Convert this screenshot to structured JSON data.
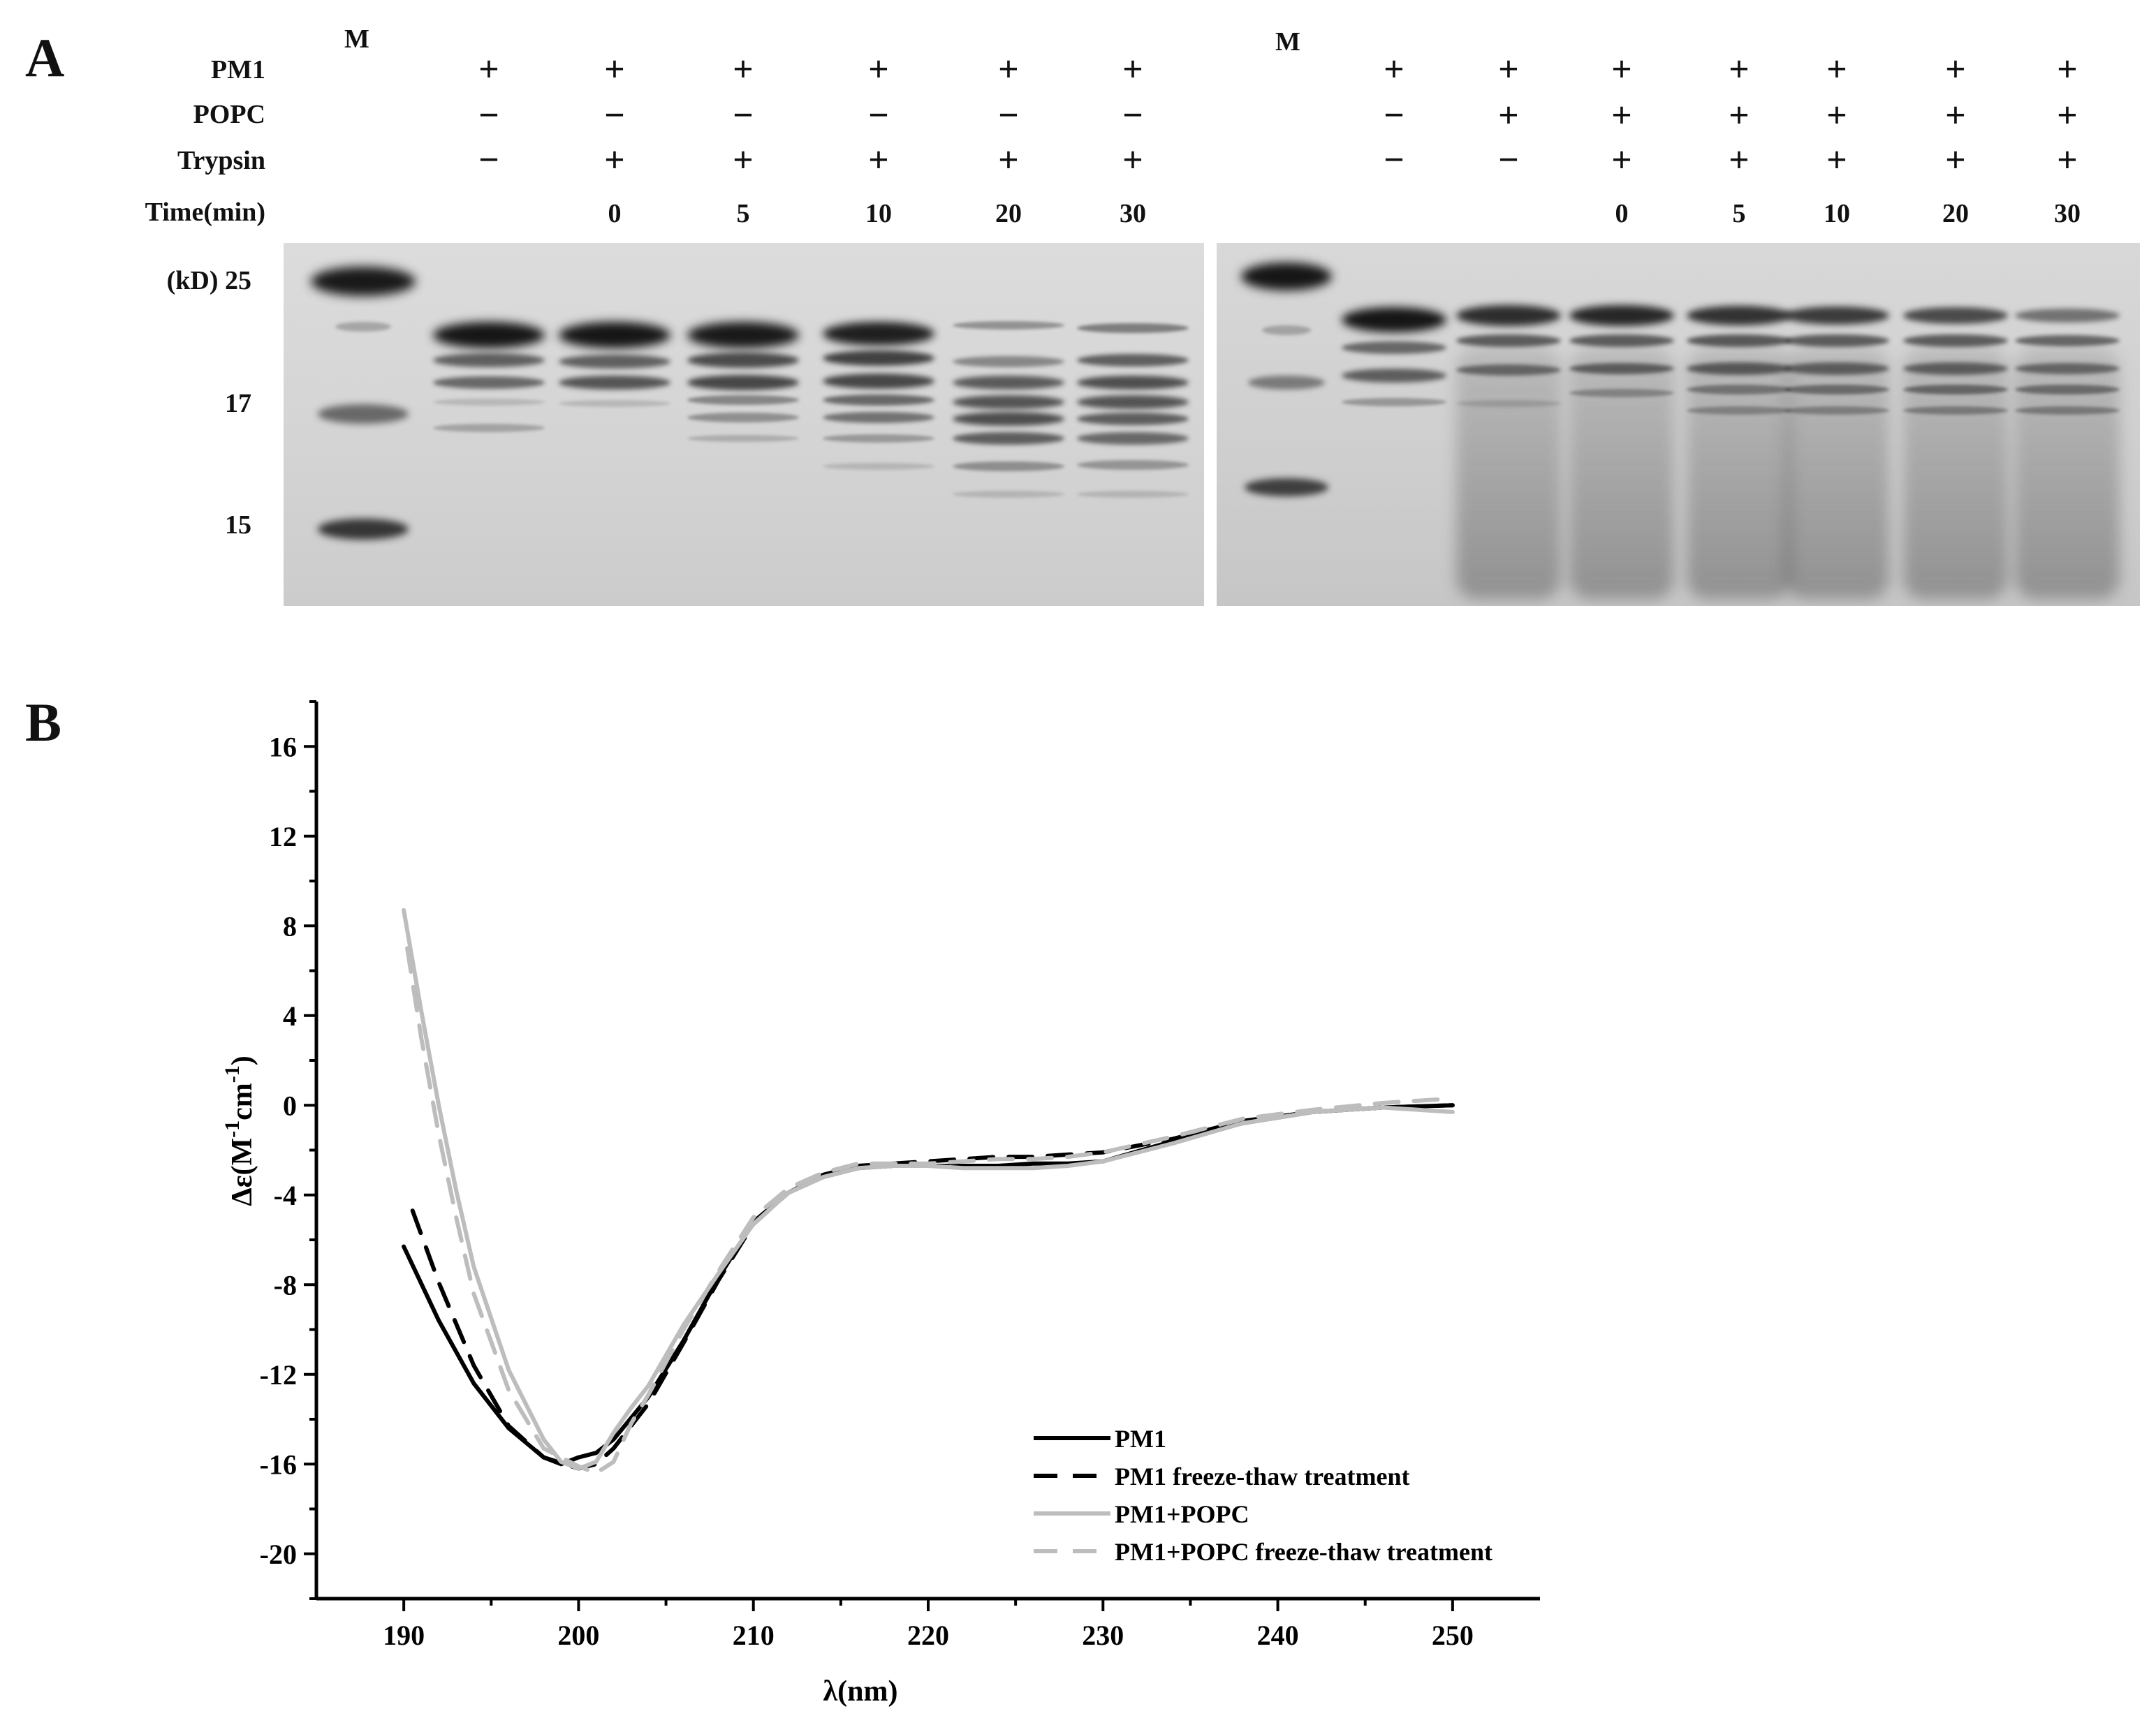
{
  "panelA": {
    "label": "A",
    "row_labels": [
      "PM1",
      "POPC",
      "Trypsin",
      "Time(min)"
    ],
    "marker_label": "M",
    "kd_labels": [
      "(kD) 25",
      "17",
      "15"
    ],
    "gel1": {
      "pm1": [
        "+",
        "+",
        "+",
        "+",
        "+",
        "+"
      ],
      "popc": [
        "−",
        "−",
        "−",
        "−",
        "−",
        "−"
      ],
      "trypsin": [
        "−",
        "+",
        "+",
        "+",
        "+",
        "+"
      ],
      "time": [
        "",
        "0",
        "5",
        "10",
        "20",
        "30"
      ]
    },
    "gel2": {
      "pm1": [
        "+",
        "+",
        "+",
        "+",
        "+",
        "+",
        "+"
      ],
      "popc": [
        "−",
        "+",
        "+",
        "+",
        "+",
        "+",
        "+"
      ],
      "trypsin": [
        "−",
        "−",
        "+",
        "+",
        "+",
        "+",
        "+"
      ],
      "time": [
        "",
        "",
        "0",
        "5",
        "10",
        "20",
        "30"
      ]
    }
  },
  "panelB": {
    "label": "B"
  },
  "chart_data": {
    "type": "line",
    "xlabel": "λ(nm)",
    "ylabel_main": "Δε(M",
    "ylabel_sup1": "-1",
    "ylabel_mid": "cm",
    "ylabel_sup2": "-1",
    "ylabel_end": ")",
    "xlim": [
      185,
      255
    ],
    "ylim": [
      -22,
      18
    ],
    "xticks": [
      "190",
      "200",
      "210",
      "220",
      "230",
      "240",
      "250"
    ],
    "yticks": [
      "16",
      "12",
      "8",
      "4",
      "0",
      "-4",
      "-8",
      "-12",
      "-16",
      "-20"
    ],
    "legend_position": "bottom-right",
    "series": [
      {
        "name": "PM1",
        "color": "#000000",
        "dash": false,
        "x": [
          190,
          192,
          194,
          196,
          198,
          199,
          200,
          201,
          202,
          204,
          206,
          208,
          210,
          212,
          214,
          216,
          218,
          220,
          222,
          224,
          226,
          228,
          230,
          234,
          238,
          242,
          246,
          250
        ],
        "y": [
          -6.3,
          -9.6,
          -12.4,
          -14.4,
          -15.7,
          -16.0,
          -15.7,
          -15.5,
          -14.9,
          -13.0,
          -10.5,
          -7.7,
          -5.2,
          -3.9,
          -3.2,
          -2.8,
          -2.7,
          -2.7,
          -2.7,
          -2.7,
          -2.6,
          -2.6,
          -2.5,
          -1.6,
          -0.8,
          -0.3,
          -0.1,
          0.0
        ]
      },
      {
        "name": "PM1 freeze-thaw treatment",
        "color": "#000000",
        "dash": true,
        "x": [
          190.5,
          192,
          194,
          196,
          198,
          200,
          201,
          202,
          204,
          206,
          208,
          210,
          212,
          214,
          216,
          218,
          220,
          222,
          224,
          226,
          228,
          230,
          234,
          238,
          242,
          246,
          250
        ],
        "y": [
          -4.7,
          -7.9,
          -11.6,
          -14.3,
          -15.7,
          -16.2,
          -16.0,
          -15.3,
          -13.3,
          -10.6,
          -7.8,
          -5.3,
          -3.9,
          -3.1,
          -2.7,
          -2.6,
          -2.5,
          -2.4,
          -2.3,
          -2.3,
          -2.2,
          -2.1,
          -1.5,
          -0.7,
          -0.3,
          -0.1,
          0.0
        ]
      },
      {
        "name": "PM1+POPC",
        "color": "#bdbdbd",
        "dash": false,
        "x": [
          190,
          191,
          192,
          193,
          194,
          196,
          198,
          199,
          200,
          201,
          202,
          203,
          204,
          206,
          208,
          210,
          212,
          214,
          216,
          218,
          220,
          222,
          224,
          226,
          228,
          230,
          234,
          238,
          242,
          246,
          250
        ],
        "y": [
          8.7,
          4.2,
          0.0,
          -3.8,
          -7.2,
          -11.8,
          -14.9,
          -15.9,
          -16.2,
          -15.9,
          -14.6,
          -13.5,
          -12.5,
          -9.8,
          -7.5,
          -5.3,
          -3.9,
          -3.2,
          -2.8,
          -2.7,
          -2.7,
          -2.8,
          -2.8,
          -2.8,
          -2.7,
          -2.5,
          -1.7,
          -0.8,
          -0.3,
          -0.1,
          -0.3
        ]
      },
      {
        "name": "PM1+POPC freeze-thaw treatment",
        "color": "#bdbdbd",
        "dash": true,
        "x": [
          190.2,
          191,
          192,
          193,
          194,
          196,
          198,
          200,
          201,
          202,
          203,
          204,
          206,
          208,
          210,
          212,
          214,
          216,
          218,
          220,
          222,
          224,
          226,
          228,
          230,
          234,
          238,
          242,
          246,
          250
        ],
        "y": [
          7.0,
          3.0,
          -1.3,
          -5.0,
          -8.4,
          -12.7,
          -15.3,
          -16.1,
          -16.4,
          -15.9,
          -14.2,
          -12.9,
          -10.0,
          -7.4,
          -5.0,
          -3.7,
          -3.0,
          -2.6,
          -2.6,
          -2.6,
          -2.5,
          -2.4,
          -2.4,
          -2.3,
          -2.1,
          -1.4,
          -0.6,
          -0.2,
          0.1,
          0.3
        ]
      }
    ]
  }
}
